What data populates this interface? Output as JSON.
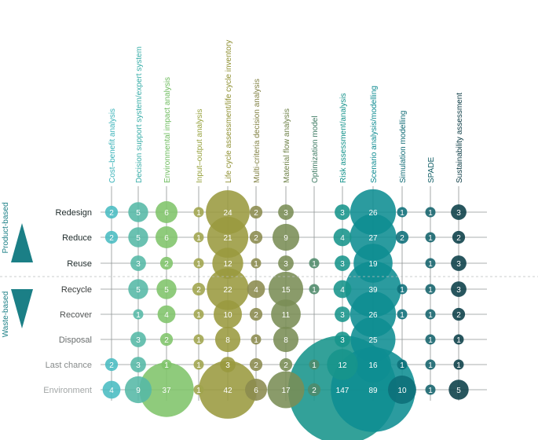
{
  "chart_data": {
    "type": "bubble-matrix",
    "side_labels": {
      "top": "Product-based",
      "bottom": "Waste-based"
    },
    "columns": [
      {
        "label": "Cost–benefit analysis",
        "color": "#49bcc1",
        "label_color": "#3bb3b9"
      },
      {
        "label": "Decision support system/expert system",
        "color": "#55b8a6",
        "label_color": "#3aaea9"
      },
      {
        "label": "Environmental impact analysis",
        "color": "#7fc46a",
        "label_color": "#6dbb5d"
      },
      {
        "label": "Input–output analysis",
        "color": "#9fa44c",
        "label_color": "#97a23e"
      },
      {
        "label": "Life cycle assessment/life cycle inventory",
        "color": "#9a9a3f",
        "label_color": "#8f9033"
      },
      {
        "label": "Multi-criteria decision analysis",
        "color": "#8b8b4f",
        "label_color": "#828245"
      },
      {
        "label": "Material flow analysis",
        "color": "#7a8d55",
        "label_color": "#6f8249"
      },
      {
        "label": "Optimization model",
        "color": "#4f8a6a",
        "label_color": "#3e7a63"
      },
      {
        "label": "Risk assessment/analysis",
        "color": "#17948b",
        "label_color": "#13928a"
      },
      {
        "label": "Scenario analysis/modelling",
        "color": "#0e8d92",
        "label_color": "#0c8a90"
      },
      {
        "label": "Simulation modelling",
        "color": "#0d6e79",
        "label_color": "#0f6a74"
      },
      {
        "label": "SPADE",
        "color": "#12626b",
        "label_color": "#0f5c64"
      },
      {
        "label": "Sustainability assessment",
        "color": "#0a3f48",
        "label_color": "#0a3a43"
      }
    ],
    "rows": [
      {
        "label": "Redesign",
        "label_color": "#1e2a2a",
        "values": [
          2,
          5,
          6,
          1,
          24,
          2,
          3,
          null,
          3,
          26,
          1,
          1,
          3
        ]
      },
      {
        "label": "Reduce",
        "label_color": "#1e2a2a",
        "values": [
          2,
          5,
          6,
          1,
          21,
          2,
          9,
          null,
          4,
          27,
          2,
          1,
          2
        ]
      },
      {
        "label": "Reuse",
        "label_color": "#1e2a2a",
        "values": [
          null,
          3,
          2,
          1,
          12,
          1,
          3,
          1,
          3,
          19,
          null,
          1,
          3
        ]
      },
      {
        "label": "Recycle",
        "label_color": "#3a3e3e",
        "values": [
          null,
          5,
          5,
          2,
          22,
          4,
          15,
          1,
          4,
          39,
          1,
          1,
          3
        ]
      },
      {
        "label": "Recover",
        "label_color": "#515555",
        "values": [
          null,
          1,
          4,
          1,
          10,
          2,
          11,
          null,
          3,
          26,
          1,
          1,
          2
        ]
      },
      {
        "label": "Disposal",
        "label_color": "#6a6e6e",
        "values": [
          null,
          3,
          2,
          1,
          8,
          1,
          8,
          null,
          3,
          25,
          null,
          1,
          1
        ]
      },
      {
        "label": "Last chance",
        "label_color": "#878b8b",
        "values": [
          2,
          3,
          1,
          1,
          3,
          2,
          2,
          1,
          12,
          16,
          1,
          1,
          1
        ]
      },
      {
        "label": "Environment",
        "label_color": "#a2a6a6",
        "values": [
          4,
          9,
          37,
          1,
          42,
          6,
          17,
          2,
          147,
          89,
          10,
          1,
          5
        ]
      }
    ]
  }
}
